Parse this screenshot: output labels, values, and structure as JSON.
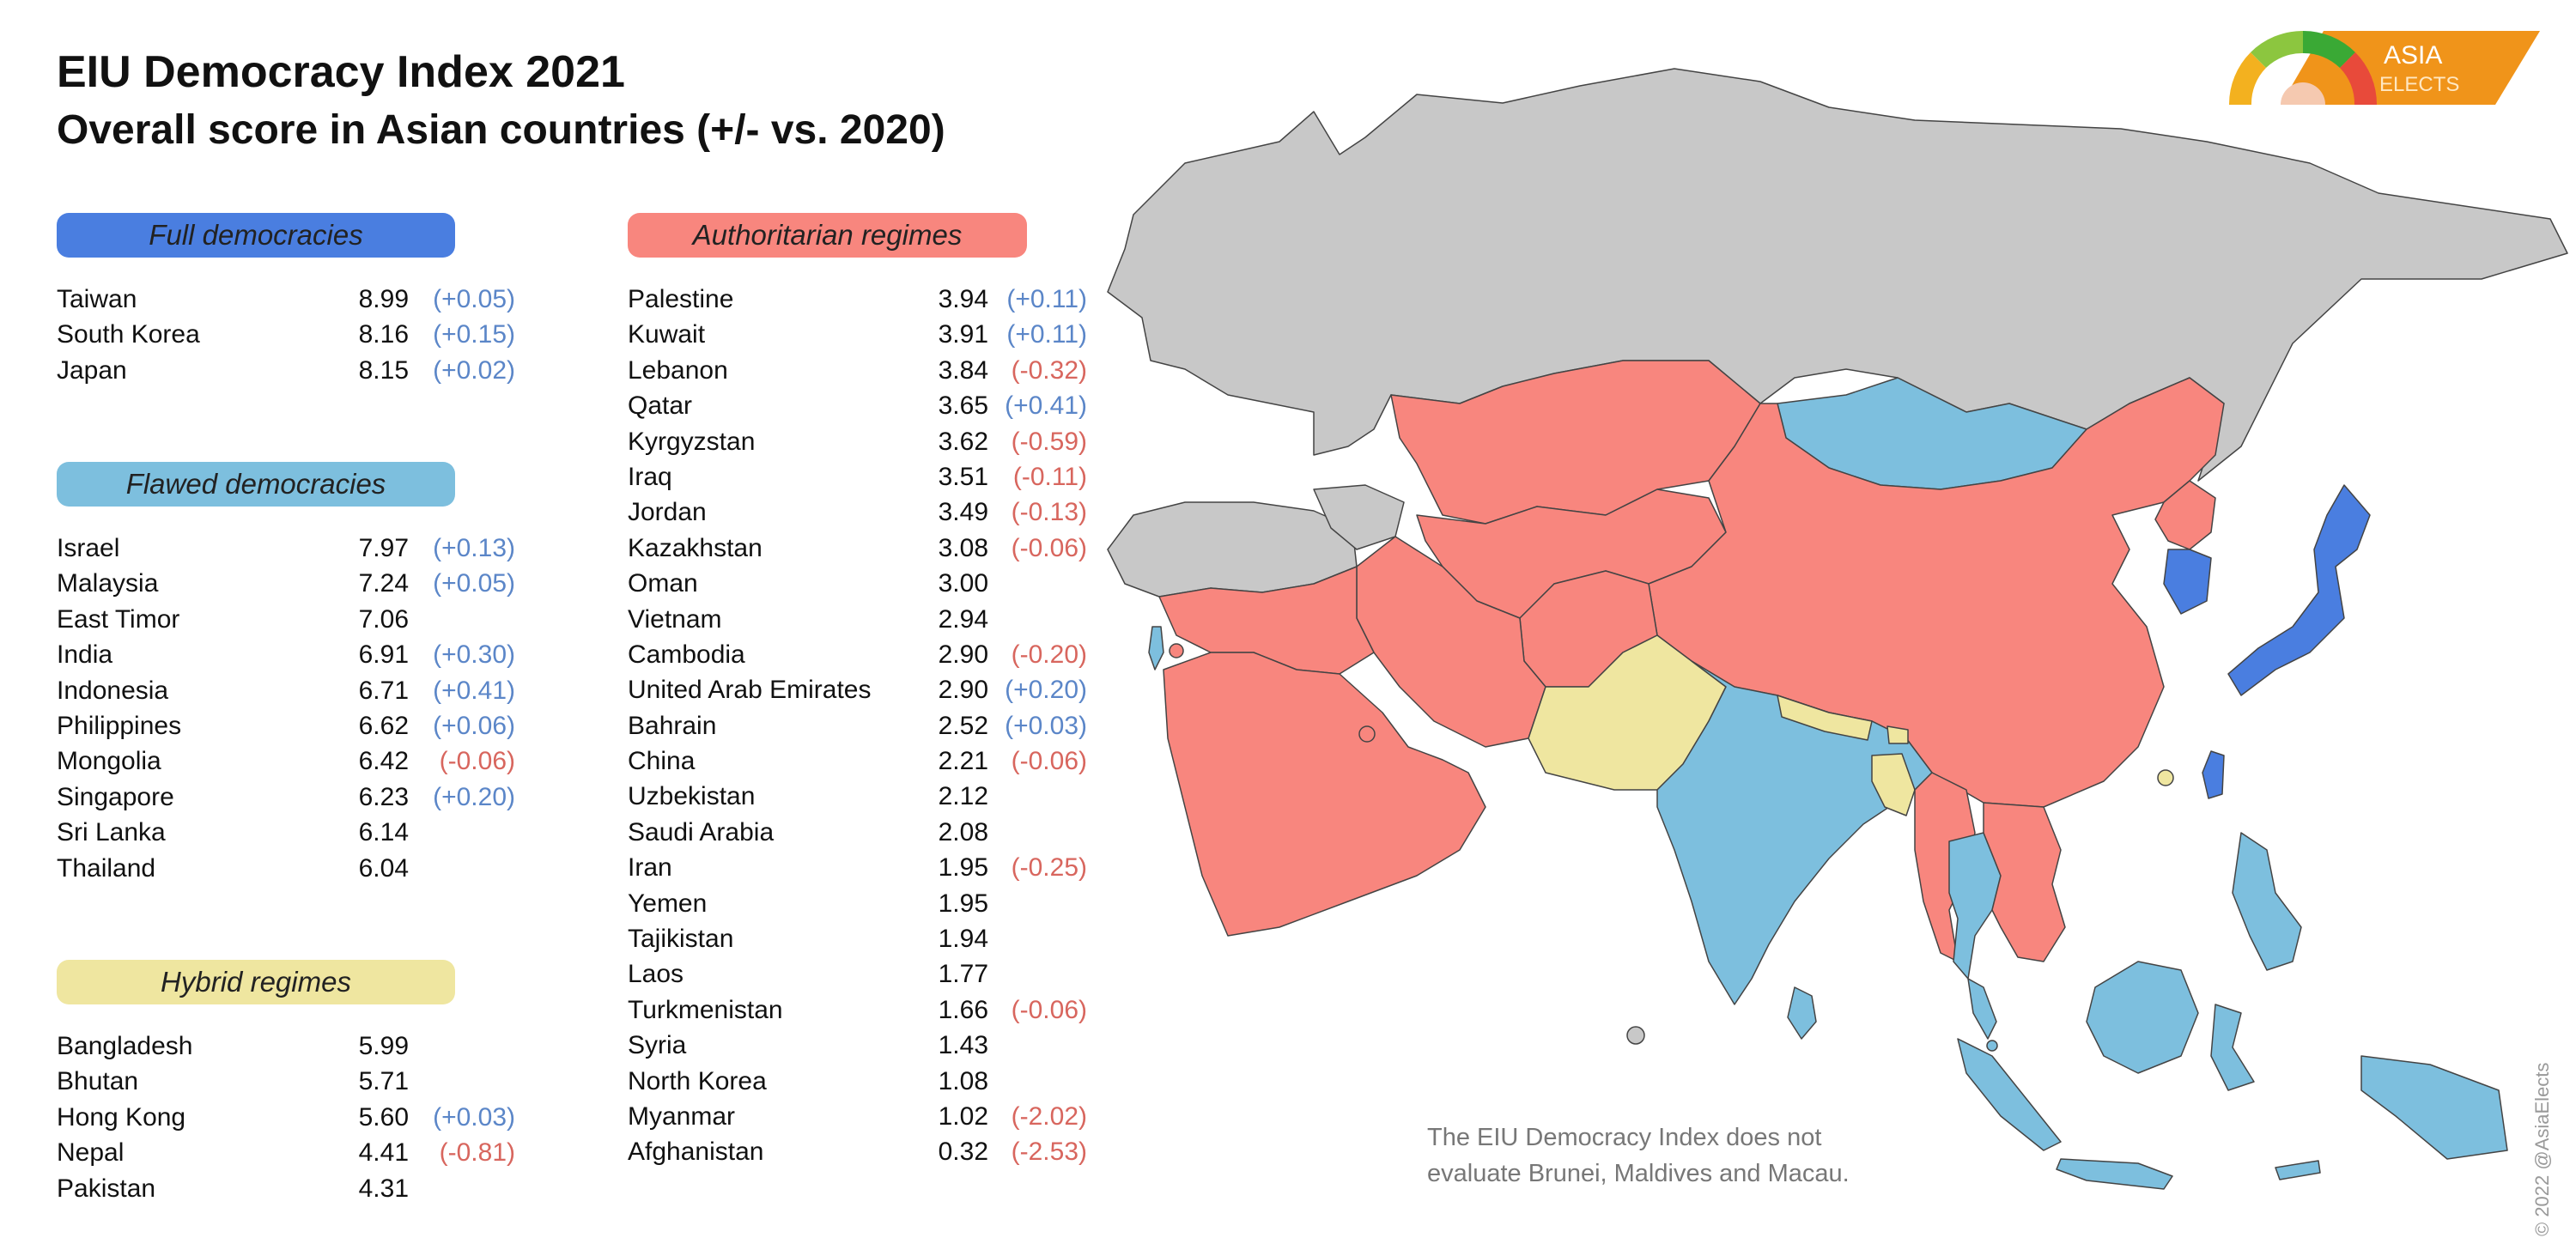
{
  "title": "EIU Democracy Index 2021",
  "subtitle": "Overall score in Asian countries (+/- vs. 2020)",
  "colors": {
    "full": "#4a7ee0",
    "flawed": "#7dbfde",
    "hybrid": "#efe6a0",
    "authoritarian": "#f8867e",
    "not_evaluated": "#c8c8c8"
  },
  "categories": {
    "full": {
      "label": "Full democracies",
      "items": [
        {
          "name": "Taiwan",
          "score": "8.99",
          "change": "(+0.05)"
        },
        {
          "name": "South Korea",
          "score": "8.16",
          "change": "(+0.15)"
        },
        {
          "name": "Japan",
          "score": "8.15",
          "change": "(+0.02)"
        }
      ]
    },
    "flawed": {
      "label": "Flawed democracies",
      "items": [
        {
          "name": "Israel",
          "score": "7.97",
          "change": "(+0.13)"
        },
        {
          "name": "Malaysia",
          "score": "7.24",
          "change": "(+0.05)"
        },
        {
          "name": "East Timor",
          "score": "7.06",
          "change": ""
        },
        {
          "name": "India",
          "score": "6.91",
          "change": "(+0.30)"
        },
        {
          "name": "Indonesia",
          "score": "6.71",
          "change": "(+0.41)"
        },
        {
          "name": "Philippines",
          "score": "6.62",
          "change": "(+0.06)"
        },
        {
          "name": "Mongolia",
          "score": "6.42",
          "change": "(-0.06)"
        },
        {
          "name": "Singapore",
          "score": "6.23",
          "change": "(+0.20)"
        },
        {
          "name": "Sri Lanka",
          "score": "6.14",
          "change": ""
        },
        {
          "name": "Thailand",
          "score": "6.04",
          "change": ""
        }
      ]
    },
    "hybrid": {
      "label": "Hybrid regimes",
      "items": [
        {
          "name": "Bangladesh",
          "score": "5.99",
          "change": ""
        },
        {
          "name": "Bhutan",
          "score": "5.71",
          "change": ""
        },
        {
          "name": "Hong Kong",
          "score": "5.60",
          "change": "(+0.03)"
        },
        {
          "name": "Nepal",
          "score": "4.41",
          "change": "(-0.81)"
        },
        {
          "name": "Pakistan",
          "score": "4.31",
          "change": ""
        }
      ]
    },
    "authoritarian": {
      "label": "Authoritarian regimes",
      "items": [
        {
          "name": "Palestine",
          "score": "3.94",
          "change": "(+0.11)"
        },
        {
          "name": "Kuwait",
          "score": "3.91",
          "change": "(+0.11)"
        },
        {
          "name": "Lebanon",
          "score": "3.84",
          "change": "(-0.32)"
        },
        {
          "name": "Qatar",
          "score": "3.65",
          "change": "(+0.41)"
        },
        {
          "name": "Kyrgyzstan",
          "score": "3.62",
          "change": "(-0.59)"
        },
        {
          "name": "Iraq",
          "score": "3.51",
          "change": "(-0.11)"
        },
        {
          "name": "Jordan",
          "score": "3.49",
          "change": "(-0.13)"
        },
        {
          "name": "Kazakhstan",
          "score": "3.08",
          "change": "(-0.06)"
        },
        {
          "name": "Oman",
          "score": "3.00",
          "change": ""
        },
        {
          "name": "Vietnam",
          "score": "2.94",
          "change": ""
        },
        {
          "name": "Cambodia",
          "score": "2.90",
          "change": "(-0.20)"
        },
        {
          "name": "United Arab Emirates",
          "score": "2.90",
          "change": "(+0.20)"
        },
        {
          "name": "Bahrain",
          "score": "2.52",
          "change": "(+0.03)"
        },
        {
          "name": "China",
          "score": "2.21",
          "change": "(-0.06)"
        },
        {
          "name": "Uzbekistan",
          "score": "2.12",
          "change": ""
        },
        {
          "name": "Saudi Arabia",
          "score": "2.08",
          "change": ""
        },
        {
          "name": "Iran",
          "score": "1.95",
          "change": "(-0.25)"
        },
        {
          "name": "Yemen",
          "score": "1.95",
          "change": ""
        },
        {
          "name": "Tajikistan",
          "score": "1.94",
          "change": ""
        },
        {
          "name": "Laos",
          "score": "1.77",
          "change": ""
        },
        {
          "name": "Turkmenistan",
          "score": "1.66",
          "change": "(-0.06)"
        },
        {
          "name": "Syria",
          "score": "1.43",
          "change": ""
        },
        {
          "name": "North Korea",
          "score": "1.08",
          "change": ""
        },
        {
          "name": "Myanmar",
          "score": "1.02",
          "change": "(-2.02)"
        },
        {
          "name": "Afghanistan",
          "score": "0.32",
          "change": "(-2.53)"
        }
      ]
    }
  },
  "note": "The EIU Democracy Index does not evaluate Brunei, Maldives and Macau.",
  "credit": "© 2022 @AsiaElects",
  "logo": {
    "line1": "ASIA",
    "line2": "ELECTS"
  },
  "icons": {
    "logo": "gauge-logo-icon"
  }
}
